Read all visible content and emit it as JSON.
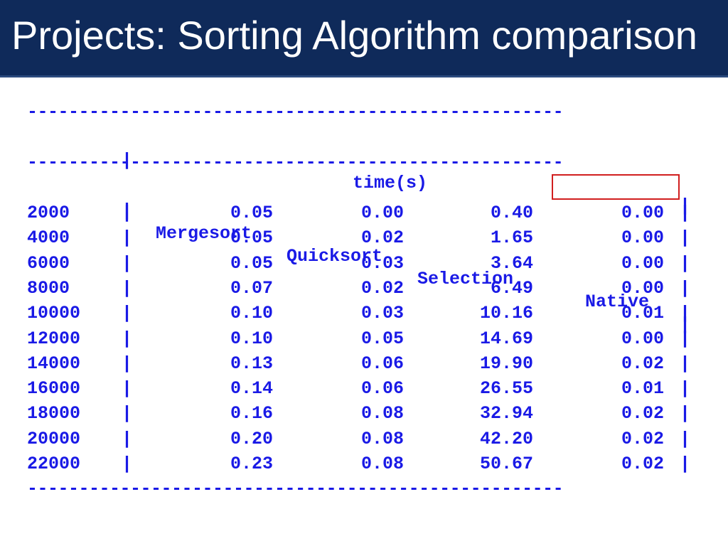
{
  "slide": {
    "title": "Projects: Sorting Algorithm comparison"
  },
  "table": {
    "separator": "----------------------------------------------------",
    "pipe": "|",
    "group_header": "time(s)",
    "columns": [
      "Mergesort",
      "Quicksort",
      "Selection",
      "Native"
    ],
    "rows": [
      {
        "n": "2000",
        "merge": "0.05",
        "quick": "0.00",
        "selection": "0.40",
        "native": "0.00"
      },
      {
        "n": "4000",
        "merge": "0.05",
        "quick": "0.02",
        "selection": "1.65",
        "native": "0.00"
      },
      {
        "n": "6000",
        "merge": "0.05",
        "quick": "0.03",
        "selection": "3.64",
        "native": "0.00"
      },
      {
        "n": "8000",
        "merge": "0.07",
        "quick": "0.02",
        "selection": "6.49",
        "native": "0.00"
      },
      {
        "n": "10000",
        "merge": "0.10",
        "quick": "0.03",
        "selection": "10.16",
        "native": "0.01"
      },
      {
        "n": "12000",
        "merge": "0.10",
        "quick": "0.05",
        "selection": "14.69",
        "native": "0.00"
      },
      {
        "n": "14000",
        "merge": "0.13",
        "quick": "0.06",
        "selection": "19.90",
        "native": "0.02"
      },
      {
        "n": "16000",
        "merge": "0.14",
        "quick": "0.06",
        "selection": "26.55",
        "native": "0.01"
      },
      {
        "n": "18000",
        "merge": "0.16",
        "quick": "0.08",
        "selection": "32.94",
        "native": "0.02"
      },
      {
        "n": "20000",
        "merge": "0.20",
        "quick": "0.08",
        "selection": "42.20",
        "native": "0.02"
      },
      {
        "n": "22000",
        "merge": "0.23",
        "quick": "0.08",
        "selection": "50.67",
        "native": "0.02"
      }
    ]
  },
  "colors": {
    "title_bar": "#0f2a5a",
    "terminal_text": "#1a1ae6",
    "highlight": "#d11f1f"
  }
}
